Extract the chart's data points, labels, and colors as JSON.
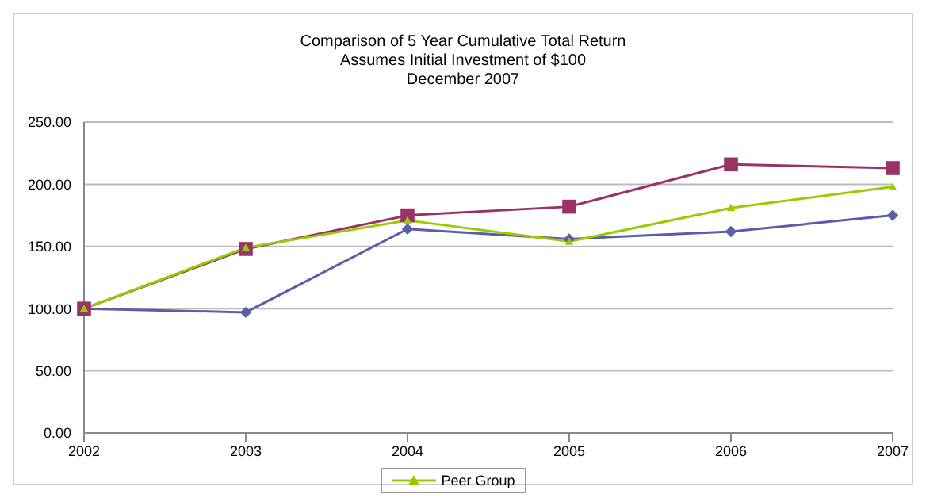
{
  "chart_data": {
    "type": "line",
    "title": "Comparison of 5 Year Cumulative Total Return",
    "subtitle": "Assumes Initial Investment of $100",
    "annotations": [
      "December 2007"
    ],
    "categories": [
      "2002",
      "2003",
      "2004",
      "2005",
      "2006",
      "2007"
    ],
    "series": [
      {
        "color": "#5b5ea6",
        "marker": "diamond",
        "values": [
          100,
          97,
          164,
          156,
          162,
          175
        ]
      },
      {
        "color": "#993366",
        "marker": "square",
        "values": [
          100,
          148,
          175,
          182,
          216,
          213
        ]
      },
      {
        "name": "Peer Group",
        "color": "#99cc00",
        "marker": "triangle",
        "values": [
          100,
          149,
          171,
          154,
          181,
          198
        ]
      }
    ],
    "ylim": [
      0,
      250
    ],
    "yticks": [
      {
        "value": 0,
        "label": "0.00"
      },
      {
        "value": 50,
        "label": "50.00"
      },
      {
        "value": 100,
        "label": "100.00"
      },
      {
        "value": 150,
        "label": "150.00"
      },
      {
        "value": 200,
        "label": "200.00"
      },
      {
        "value": 250,
        "label": "250.00"
      }
    ],
    "grid": "y",
    "legend": "bottom",
    "line_style": "solid"
  }
}
